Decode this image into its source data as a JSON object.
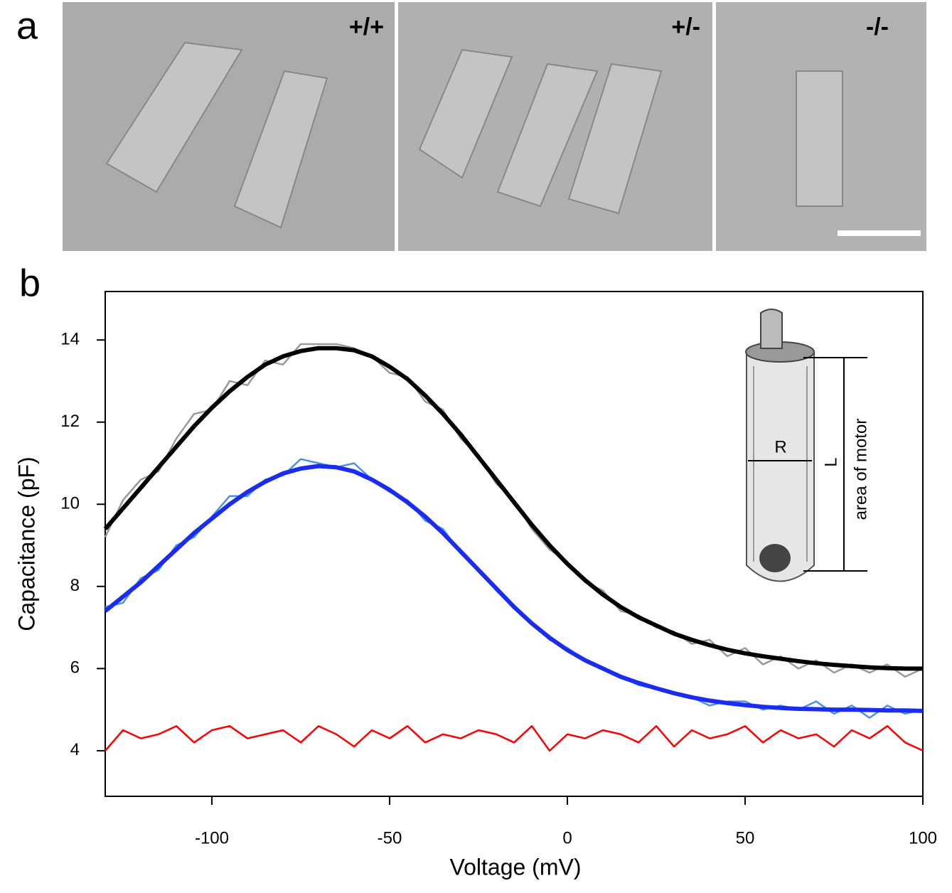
{
  "panel_labels": [
    "a",
    "b"
  ],
  "images": [
    {
      "label": "+/+"
    },
    {
      "label": "+/-"
    },
    {
      "label": "-/-"
    }
  ],
  "chart_data": {
    "type": "line",
    "x_label": "Voltage (mV)",
    "y_label": "Capacitance (pF)",
    "x": [
      -130,
      -125,
      -120,
      -115,
      -110,
      -105,
      -100,
      -95,
      -90,
      -85,
      -80,
      -75,
      -70,
      -65,
      -60,
      -55,
      -50,
      -45,
      -40,
      -35,
      -30,
      -25,
      -20,
      -15,
      -10,
      -5,
      0,
      5,
      10,
      15,
      20,
      25,
      30,
      35,
      40,
      45,
      50,
      55,
      60,
      65,
      70,
      75,
      80,
      85,
      90,
      95,
      100
    ],
    "series": [
      {
        "color": "#999999",
        "values": [
          9.2,
          10.1,
          10.6,
          10.8,
          11.6,
          12.2,
          12.3,
          13.0,
          12.9,
          13.5,
          13.4,
          13.9,
          13.9,
          13.9,
          13.8,
          13.6,
          13.2,
          13.1,
          12.5,
          12.3,
          11.6,
          11.2,
          10.5,
          10.1,
          9.4,
          8.9,
          8.6,
          8.1,
          7.9,
          7.4,
          7.3,
          7.0,
          6.9,
          6.6,
          6.7,
          6.3,
          6.5,
          6.1,
          6.3,
          6.0,
          6.2,
          5.9,
          6.1,
          5.9,
          6.1,
          5.8,
          6.0
        ]
      },
      {
        "color": "#000000",
        "values": [
          9.4,
          9.9,
          10.4,
          10.9,
          11.4,
          11.9,
          12.35,
          12.75,
          13.1,
          13.4,
          13.6,
          13.73,
          13.8,
          13.8,
          13.75,
          13.6,
          13.35,
          13.05,
          12.65,
          12.2,
          11.7,
          11.15,
          10.6,
          10.05,
          9.5,
          9.0,
          8.55,
          8.15,
          7.8,
          7.5,
          7.25,
          7.05,
          6.85,
          6.7,
          6.57,
          6.46,
          6.37,
          6.3,
          6.24,
          6.18,
          6.13,
          6.09,
          6.06,
          6.03,
          6.01,
          6.0,
          6.0
        ]
      },
      {
        "color": "#ff0000",
        "values": [
          4.0,
          4.5,
          4.3,
          4.4,
          4.6,
          4.2,
          4.5,
          4.6,
          4.3,
          4.4,
          4.5,
          4.2,
          4.6,
          4.4,
          4.1,
          4.5,
          4.3,
          4.6,
          4.2,
          4.4,
          4.3,
          4.5,
          4.4,
          4.2,
          4.6,
          4.0,
          4.4,
          4.3,
          4.5,
          4.4,
          4.2,
          4.6,
          4.1,
          4.5,
          4.3,
          4.4,
          4.6,
          4.2,
          4.5,
          4.3,
          4.4,
          4.1,
          4.5,
          4.3,
          4.6,
          4.2,
          4.0
        ]
      },
      {
        "color": "#4d8ff0",
        "values": [
          7.5,
          7.6,
          8.2,
          8.4,
          9.0,
          9.2,
          9.7,
          10.2,
          10.2,
          10.6,
          10.7,
          11.1,
          11.0,
          10.9,
          11.0,
          10.6,
          10.3,
          10.1,
          9.6,
          9.4,
          8.8,
          8.4,
          7.9,
          7.5,
          7.1,
          6.7,
          6.5,
          6.2,
          6.0,
          5.8,
          5.6,
          5.5,
          5.4,
          5.3,
          5.1,
          5.2,
          5.2,
          5.0,
          5.1,
          5.0,
          5.2,
          4.9,
          5.1,
          4.8,
          5.1,
          4.9,
          5.0
        ]
      },
      {
        "color": "#1a2cf0",
        "values": [
          7.4,
          7.75,
          8.1,
          8.5,
          8.9,
          9.3,
          9.65,
          10.0,
          10.3,
          10.55,
          10.75,
          10.87,
          10.93,
          10.9,
          10.8,
          10.6,
          10.35,
          10.05,
          9.7,
          9.3,
          8.85,
          8.4,
          7.95,
          7.5,
          7.1,
          6.75,
          6.45,
          6.2,
          6.0,
          5.8,
          5.65,
          5.52,
          5.4,
          5.3,
          5.22,
          5.16,
          5.11,
          5.07,
          5.04,
          5.02,
          5.01,
          5.0,
          5.0,
          4.99,
          4.98,
          4.98,
          4.97
        ]
      }
    ],
    "xlim": [
      -130,
      100
    ],
    "xticks": [
      -100,
      -50,
      0,
      50,
      100
    ],
    "ylim": [
      2.89,
      15.18
    ],
    "yticks": [
      4,
      6,
      8,
      10,
      12,
      14
    ],
    "inset_labels": [
      "R",
      "L",
      "area of motor"
    ]
  }
}
